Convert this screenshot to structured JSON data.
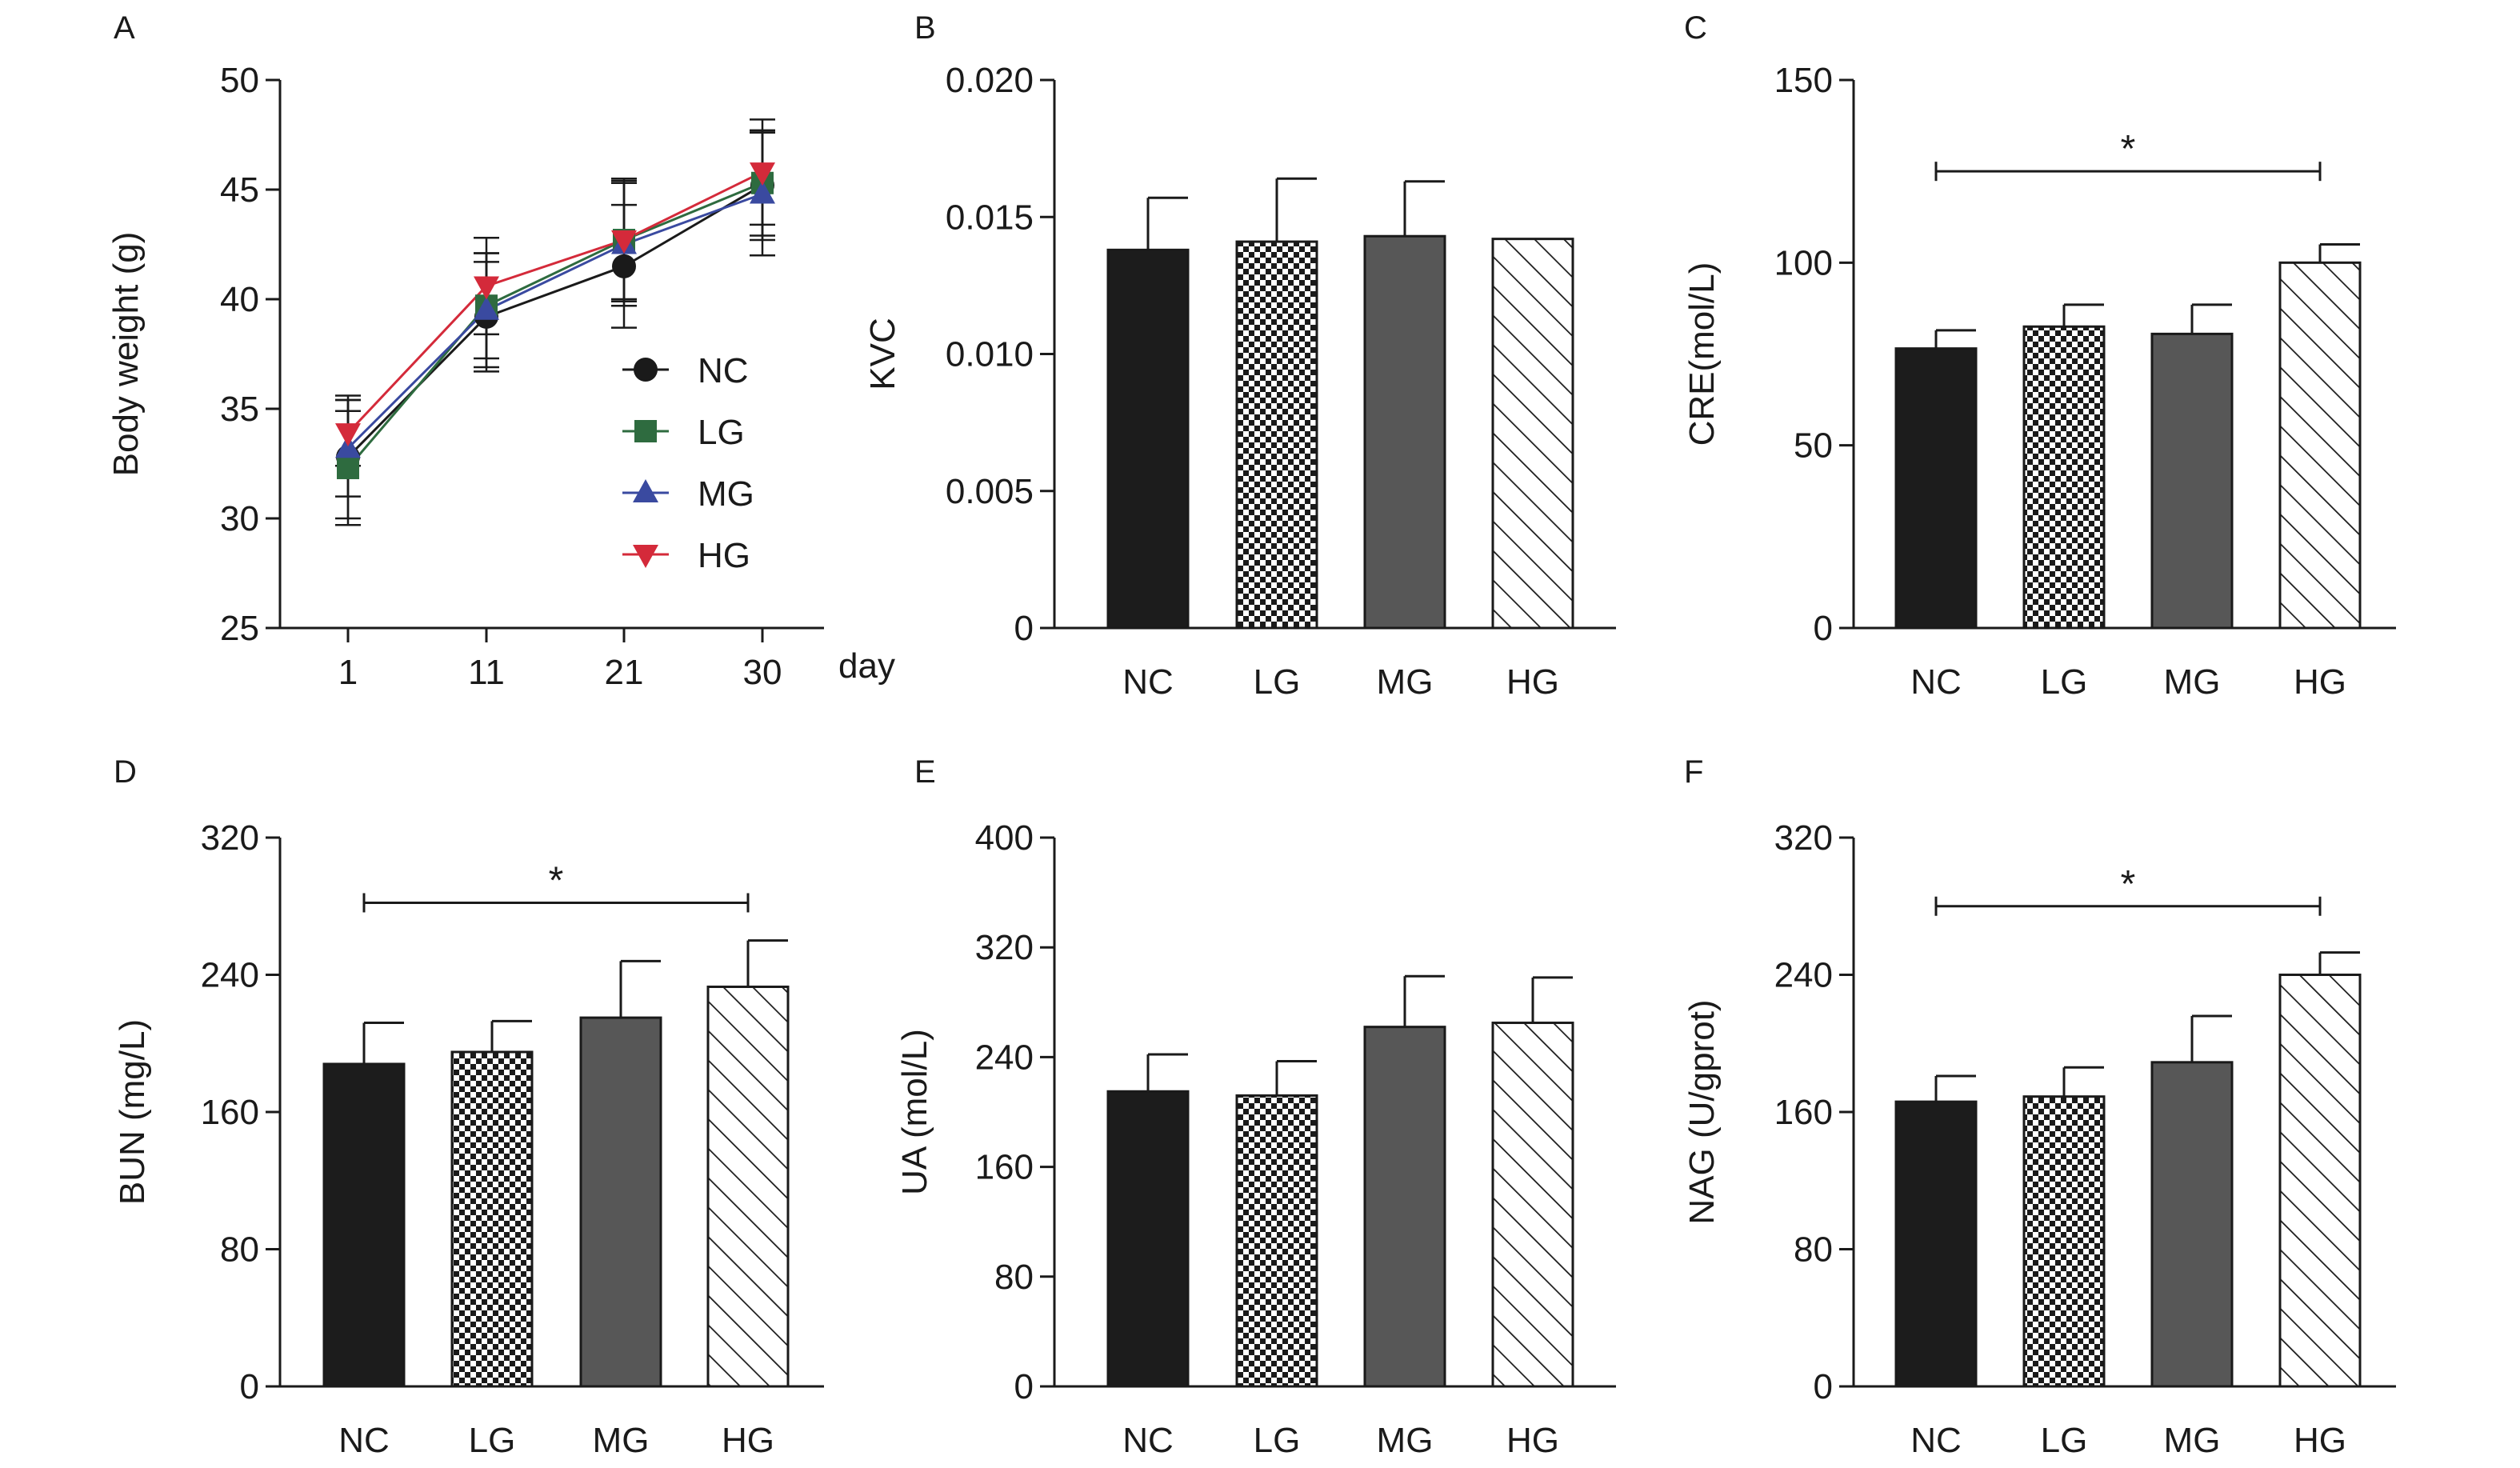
{
  "colors": {
    "bar_NC": "#1c1c1c",
    "bar_MG": "#575757",
    "line_NC": "#1a1a1a",
    "line_LG": "#2e6b3f",
    "line_MG": "#3a4aa0",
    "line_HG": "#d42a3a",
    "pattern_LG": "checkerboard",
    "pattern_HG": "diagonal-hatch"
  },
  "chart_data": [
    {
      "panel": "A",
      "type": "line",
      "x": [
        1,
        11,
        21,
        30
      ],
      "xticks": [
        "1",
        "11",
        "21",
        "30"
      ],
      "xlabel": "day",
      "ylabel": "Body weight (g)",
      "ylim": [
        25,
        50
      ],
      "yticks": [
        "25",
        "30",
        "35",
        "40",
        "45",
        "50"
      ],
      "legend": {
        "placement": "center-right"
      },
      "series": [
        {
          "name": "NC",
          "marker": "circle",
          "values": [
            32.8,
            39.2,
            41.5,
            45.2
          ],
          "err": [
            2.8,
            2.5,
            2.8,
            2.5
          ]
        },
        {
          "name": "LG",
          "marker": "square",
          "values": [
            32.3,
            39.7,
            42.7,
            45.3
          ],
          "err": [
            2.6,
            2.4,
            2.7,
            2.4
          ]
        },
        {
          "name": "MG",
          "marker": "triangle-up",
          "values": [
            33.2,
            39.5,
            42.5,
            44.8
          ],
          "err": [
            2.2,
            2.6,
            2.8,
            2.8
          ]
        },
        {
          "name": "HG",
          "marker": "triangle-down",
          "values": [
            33.9,
            40.6,
            42.7,
            45.8
          ],
          "err": [
            1.5,
            2.2,
            2.8,
            2.4
          ]
        }
      ]
    },
    {
      "panel": "B",
      "type": "bar",
      "categories": [
        "NC",
        "LG",
        "MG",
        "HG"
      ],
      "values": [
        0.0138,
        0.0141,
        0.0143,
        0.0142
      ],
      "err": [
        0.0019,
        0.0023,
        0.002,
        0
      ],
      "ylabel": "KVC",
      "ylim": [
        0,
        0.02
      ],
      "yticks": [
        "0",
        "0.005",
        "0.010",
        "0.015",
        "0.020"
      ]
    },
    {
      "panel": "C",
      "type": "bar",
      "categories": [
        "NC",
        "LG",
        "MG",
        "HG"
      ],
      "values": [
        76.5,
        82.5,
        80.5,
        100
      ],
      "err": [
        5,
        6,
        8,
        5
      ],
      "ylabel": "CRE(mol/L)",
      "ylim": [
        0,
        150
      ],
      "yticks": [
        "0",
        "50",
        "100",
        "150"
      ],
      "significance": {
        "from": "NC",
        "to": "HG",
        "level": 125,
        "label": "*"
      }
    },
    {
      "panel": "D",
      "type": "bar",
      "categories": [
        "NC",
        "LG",
        "MG",
        "HG"
      ],
      "values": [
        188,
        195,
        215,
        233
      ],
      "err": [
        24,
        18,
        33,
        27
      ],
      "ylabel": "BUN (mg/L)",
      "ylim": [
        0,
        320
      ],
      "yticks": [
        "0",
        "80",
        "160",
        "240",
        "320"
      ],
      "significance": {
        "from": "NC",
        "to": "HG",
        "level": 282,
        "label": "*"
      }
    },
    {
      "panel": "E",
      "type": "bar",
      "categories": [
        "NC",
        "LG",
        "MG",
        "HG"
      ],
      "values": [
        215,
        212,
        262,
        265
      ],
      "err": [
        27,
        25,
        37,
        33
      ],
      "ylabel": "UA (mol/L)",
      "ylim": [
        0,
        400
      ],
      "yticks": [
        "0",
        "80",
        "160",
        "240",
        "320",
        "400"
      ]
    },
    {
      "panel": "F",
      "type": "bar",
      "categories": [
        "NC",
        "LG",
        "MG",
        "HG"
      ],
      "values": [
        166,
        169,
        189,
        240
      ],
      "err": [
        15,
        17,
        27,
        13
      ],
      "ylabel": "NAG (U/gprot)",
      "ylim": [
        0,
        320
      ],
      "yticks": [
        "0",
        "80",
        "160",
        "240",
        "320"
      ],
      "significance": {
        "from": "NC",
        "to": "HG",
        "level": 280,
        "label": "*"
      }
    }
  ]
}
